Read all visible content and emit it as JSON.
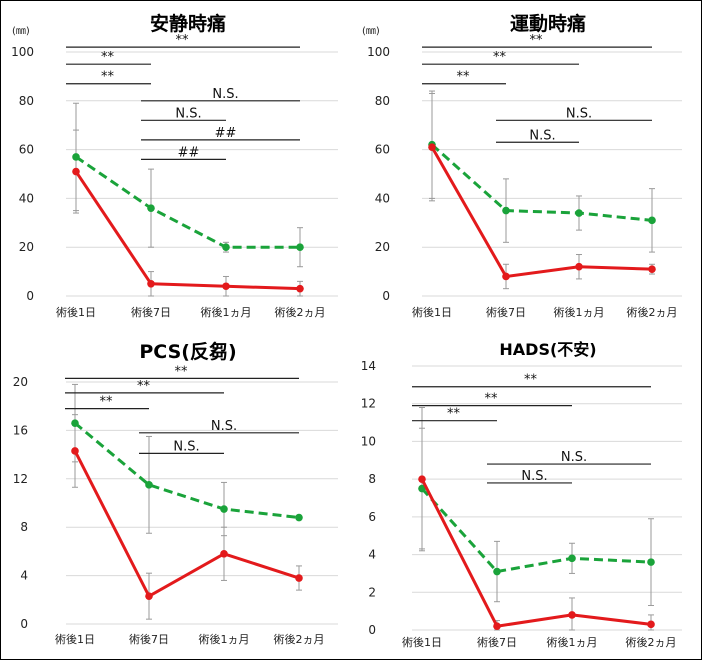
{
  "categories": [
    "術後1日",
    "術後7日",
    "術後1ヵ月",
    "術後2ヵ月"
  ],
  "colors": {
    "red": "#e31a1c",
    "green": "#1aa33a",
    "sig_line": "#222222",
    "grid": "#d9d9d9",
    "err": "#9a9a9a"
  },
  "chart_data": [
    {
      "type": "line",
      "title": "安静時痛",
      "unit_label": "(㎜)",
      "ylim": [
        0,
        100
      ],
      "yticks": [
        0,
        20,
        40,
        60,
        80,
        100
      ],
      "series": [
        {
          "color": "red",
          "style": "solid",
          "values": [
            51,
            5,
            4,
            3
          ],
          "err": [
            17,
            5,
            4,
            3
          ]
        },
        {
          "color": "green",
          "style": "dashed",
          "values": [
            57,
            36,
            20,
            20
          ],
          "err": [
            22,
            16,
            2,
            8
          ]
        }
      ],
      "significance": [
        {
          "from": 0,
          "to": 3,
          "y": 102,
          "label": "**"
        },
        {
          "from": 0,
          "to": 1,
          "y": 95,
          "label": "**"
        },
        {
          "from": 0,
          "to": 1,
          "y": 87,
          "label": "**"
        },
        {
          "from": 1,
          "to": 3,
          "y": 80,
          "label": "N.S."
        },
        {
          "from": 1,
          "to": 2,
          "y": 72,
          "label": "N.S."
        },
        {
          "from": 1,
          "to": 3,
          "y": 64,
          "label": "##"
        },
        {
          "from": 1,
          "to": 2,
          "y": 56,
          "label": "##"
        }
      ]
    },
    {
      "type": "line",
      "title": "運動時痛",
      "unit_label": "(㎜)",
      "ylim": [
        0,
        100
      ],
      "yticks": [
        0,
        20,
        40,
        60,
        80,
        100
      ],
      "series": [
        {
          "color": "red",
          "style": "solid",
          "values": [
            61,
            8,
            12,
            11
          ],
          "err": [
            22,
            5,
            5,
            2
          ]
        },
        {
          "color": "green",
          "style": "dashed",
          "values": [
            62,
            35,
            34,
            31
          ],
          "err": [
            22,
            13,
            7,
            13
          ]
        }
      ],
      "significance": [
        {
          "from": 0,
          "to": 3,
          "y": 102,
          "label": "**"
        },
        {
          "from": 0,
          "to": 2,
          "y": 95,
          "label": "**"
        },
        {
          "from": 0,
          "to": 1,
          "y": 87,
          "label": "**"
        },
        {
          "from": 1,
          "to": 3,
          "y": 72,
          "label": "N.S."
        },
        {
          "from": 1,
          "to": 2,
          "y": 63,
          "label": "N.S."
        }
      ]
    },
    {
      "type": "line",
      "title": "PCS(反芻)",
      "unit_label": "",
      "ylim": [
        0,
        20
      ],
      "yticks": [
        0,
        4,
        8,
        12,
        16,
        20
      ],
      "series": [
        {
          "color": "red",
          "style": "solid",
          "values": [
            14.3,
            2.3,
            5.8,
            3.8
          ],
          "err": [
            3,
            1.9,
            2.2,
            1
          ]
        },
        {
          "color": "green",
          "style": "dashed",
          "values": [
            16.6,
            11.5,
            9.5,
            8.8
          ],
          "err": [
            3.2,
            4,
            2.2,
            0
          ]
        }
      ],
      "significance": [
        {
          "from": 0,
          "to": 3,
          "y": 20.3,
          "label": "**"
        },
        {
          "from": 0,
          "to": 2,
          "y": 19.1,
          "label": "**"
        },
        {
          "from": 0,
          "to": 1,
          "y": 17.8,
          "label": "**"
        },
        {
          "from": 1,
          "to": 3,
          "y": 15.8,
          "label": "N.S."
        },
        {
          "from": 1,
          "to": 2,
          "y": 14.1,
          "label": "N.S."
        }
      ]
    },
    {
      "type": "line",
      "title": "HADS(不安)",
      "unit_label": "",
      "ylim": [
        0,
        14
      ],
      "yticks": [
        0,
        2,
        4,
        6,
        8,
        10,
        12,
        14
      ],
      "series": [
        {
          "color": "red",
          "style": "solid",
          "values": [
            8,
            0.2,
            0.8,
            0.3
          ],
          "err": [
            3.8,
            0.3,
            0.9,
            0.5
          ]
        },
        {
          "color": "green",
          "style": "dashed",
          "values": [
            7.5,
            3.1,
            3.8,
            3.6
          ],
          "err": [
            3.2,
            1.6,
            0.8,
            2.3
          ]
        }
      ],
      "significance": [
        {
          "from": 0,
          "to": 3,
          "y": 12.9,
          "label": "**"
        },
        {
          "from": 0,
          "to": 2,
          "y": 11.9,
          "label": "**"
        },
        {
          "from": 0,
          "to": 1,
          "y": 11.1,
          "label": "**"
        },
        {
          "from": 1,
          "to": 3,
          "y": 8.8,
          "label": "N.S."
        },
        {
          "from": 1,
          "to": 2,
          "y": 7.8,
          "label": "N.S."
        }
      ]
    }
  ]
}
